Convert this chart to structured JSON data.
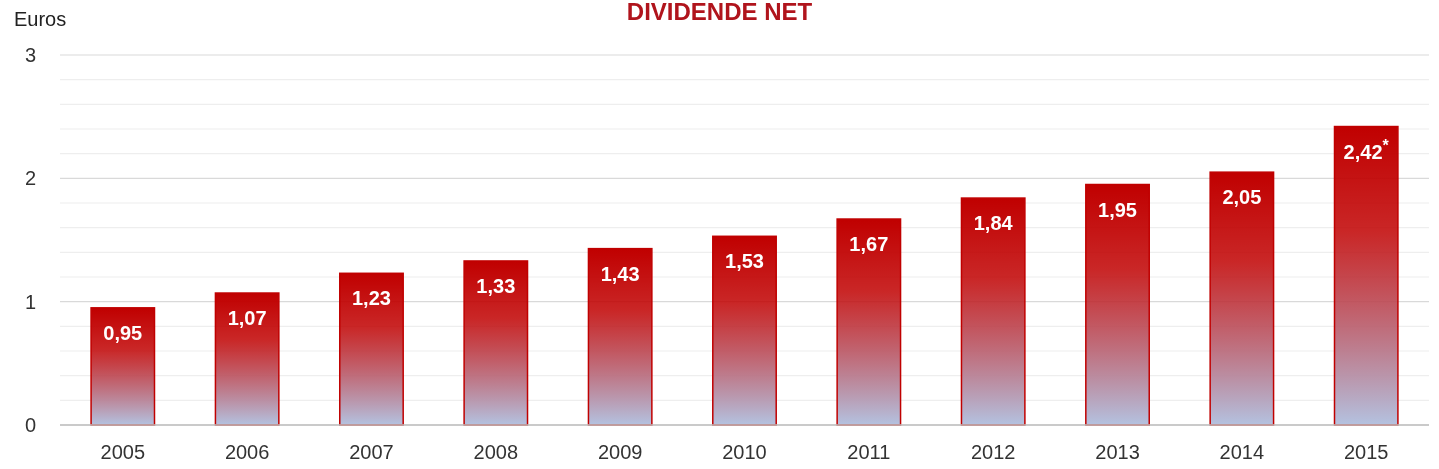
{
  "chart_data": {
    "type": "bar",
    "title": "DIVIDENDE NET",
    "ylabel": "Euros",
    "categories": [
      "2005",
      "2006",
      "2007",
      "2008",
      "2009",
      "2010",
      "2011",
      "2012",
      "2013",
      "2014",
      "2015"
    ],
    "values": [
      0.95,
      1.07,
      1.23,
      1.33,
      1.43,
      1.53,
      1.67,
      1.84,
      1.95,
      2.05,
      2.42
    ],
    "value_labels": [
      "0,95",
      "1,07",
      "1,23",
      "1,33",
      "1,43",
      "1,53",
      "1,67",
      "1,84",
      "1,95",
      "2,05",
      "2,42$^{*}$"
    ],
    "color": "#c00000",
    "ylim": [
      0,
      3
    ],
    "yticks": [
      0,
      {
        "value": 0.2,
        "label": null
      },
      {
        "value": 0.4,
        "label": null
      },
      {
        "value": 0.6,
        "label": null
      },
      {
        "value": 0.8,
        "label": null
      },
      1,
      {
        "value": 1.2,
        "label": null
      },
      {
        "value": 1.4,
        "label": null
      },
      {
        "value": 1.6,
        "label": null
      },
      {
        "value": 1.8,
        "label": null
      },
      2,
      {
        "value": 2.2,
        "label": null
      },
      {
        "value": 2.4,
        "label": null
      },
      {
        "value": 2.6,
        "label": null
      },
      {
        "value": 2.8,
        "label": null
      },
      3
    ],
    "grid": true
  }
}
